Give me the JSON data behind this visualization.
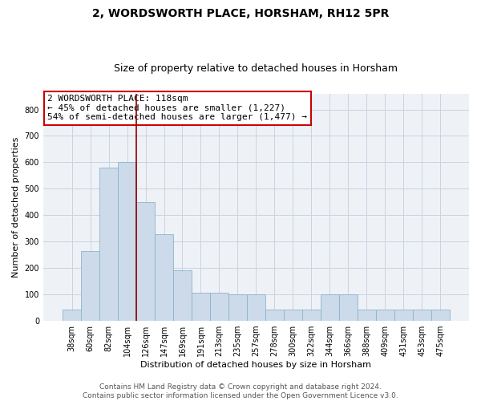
{
  "title": "2, WORDSWORTH PLACE, HORSHAM, RH12 5PR",
  "subtitle": "Size of property relative to detached houses in Horsham",
  "xlabel": "Distribution of detached houses by size in Horsham",
  "ylabel": "Number of detached properties",
  "categories": [
    "38sqm",
    "60sqm",
    "82sqm",
    "104sqm",
    "126sqm",
    "147sqm",
    "169sqm",
    "191sqm",
    "213sqm",
    "235sqm",
    "257sqm",
    "278sqm",
    "300sqm",
    "322sqm",
    "344sqm",
    "366sqm",
    "388sqm",
    "409sqm",
    "431sqm",
    "453sqm",
    "475sqm"
  ],
  "values": [
    42,
    265,
    580,
    600,
    450,
    328,
    190,
    105,
    105,
    100,
    100,
    42,
    42,
    42,
    100,
    100,
    42,
    42,
    42,
    42,
    42
  ],
  "bar_color": "#ccdaea",
  "bar_edgecolor": "#8ab4cc",
  "vline_color": "#8b0000",
  "vline_x": 3.5,
  "annotation_text": "2 WORDSWORTH PLACE: 118sqm\n← 45% of detached houses are smaller (1,227)\n54% of semi-detached houses are larger (1,477) →",
  "annotation_box_color": "#cc0000",
  "ylim": [
    0,
    860
  ],
  "yticks": [
    0,
    100,
    200,
    300,
    400,
    500,
    600,
    700,
    800
  ],
  "grid_color": "#c8d4e0",
  "background_color": "#eef2f7",
  "footer_text": "Contains HM Land Registry data © Crown copyright and database right 2024.\nContains public sector information licensed under the Open Government Licence v3.0.",
  "title_fontsize": 10,
  "subtitle_fontsize": 9,
  "xlabel_fontsize": 8,
  "ylabel_fontsize": 8,
  "tick_fontsize": 7,
  "annotation_fontsize": 8,
  "footer_fontsize": 6.5
}
